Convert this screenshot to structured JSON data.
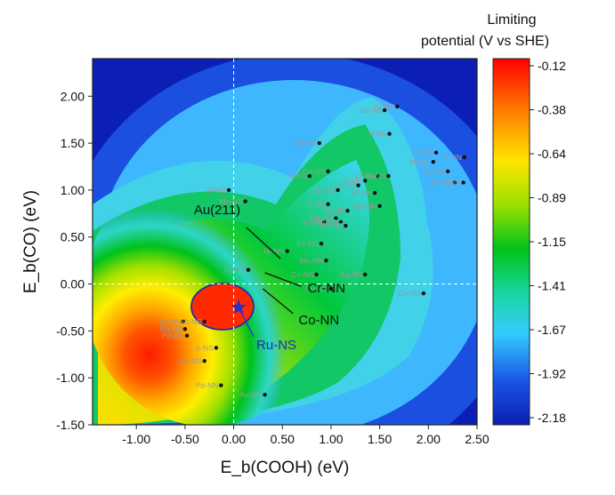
{
  "chart_data": {
    "type": "contour-scatter",
    "xlabel": "E_b(COOH) (eV)",
    "ylabel": "E_b(CO) (eV)",
    "xlim": [
      -1.45,
      2.5
    ],
    "ylim": [
      -1.5,
      2.4
    ],
    "x_ticks": [
      "-1.00",
      "-0.50",
      "0.00",
      "0.50",
      "1.00",
      "1.50",
      "2.00",
      "2.50"
    ],
    "y_ticks": [
      "2.00",
      "1.50",
      "1.00",
      "0.50",
      "0.00",
      "-0.50",
      "-1.00",
      "-1.50"
    ],
    "colorbar": {
      "title_line1": "Limiting",
      "title_line2": "potential (V vs SHE)",
      "ticks": [
        "-0.12",
        "-0.38",
        "-0.64",
        "-0.89",
        "-1.15",
        "-1.41",
        "-1.67",
        "-1.92",
        "-2.18"
      ],
      "range": [
        -2.18,
        -0.12
      ]
    },
    "points": [
      {
        "label": "Ta-NN",
        "x": 1.68,
        "y": 1.89
      },
      {
        "label": "Nb-NS",
        "x": 1.55,
        "y": 1.85
      },
      {
        "label": "Ti-NN",
        "x": 1.6,
        "y": 1.6
      },
      {
        "label": "Zr-NN",
        "x": 2.08,
        "y": 1.4
      },
      {
        "label": "Y-NN",
        "x": 2.37,
        "y": 1.35
      },
      {
        "label": "Hf-NS",
        "x": 2.05,
        "y": 1.3
      },
      {
        "label": "Sc-NN",
        "x": 2.2,
        "y": 1.2
      },
      {
        "label": "Sc-NS",
        "x": 2.27,
        "y": 1.08
      },
      {
        "label": "Y-NS",
        "x": 2.36,
        "y": 1.08
      },
      {
        "label": "Mn-NN",
        "x": 0.88,
        "y": 1.5
      },
      {
        "label": "Co-NS",
        "x": 0.97,
        "y": 1.2
      },
      {
        "label": "Ir-NS",
        "x": 0.78,
        "y": 1.15
      },
      {
        "label": "Ti-NS",
        "x": 1.35,
        "y": 1.1
      },
      {
        "label": "Zr-NS",
        "x": 1.48,
        "y": 1.15
      },
      {
        "label": "Ta-NS",
        "x": 1.59,
        "y": 1.15
      },
      {
        "label": "Hf-NN",
        "x": 1.28,
        "y": 1.05
      },
      {
        "label": "Nb-NS",
        "x": 1.07,
        "y": 1.0
      },
      {
        "label": "W-NN",
        "x": 1.45,
        "y": 0.97
      },
      {
        "label": "Ru-NN",
        "x": 1.5,
        "y": 0.83
      },
      {
        "label": "V-NN",
        "x": 0.97,
        "y": 0.85
      },
      {
        "label": "Fe-NN",
        "x": 1.17,
        "y": 0.78
      },
      {
        "label": "Ir-NN",
        "x": 0.93,
        "y": 0.66
      },
      {
        "label": "Rh-NN",
        "x": 1.05,
        "y": 0.7
      },
      {
        "label": "Mn-NS",
        "x": 1.1,
        "y": 0.66
      },
      {
        "label": "Re-NS",
        "x": 1.15,
        "y": 0.62
      },
      {
        "label": "W-NS",
        "x": -0.05,
        "y": 1.0
      },
      {
        "label": "Mo-NS",
        "x": 0.12,
        "y": 0.88
      },
      {
        "label": "Ni-NN",
        "x": 0.55,
        "y": 0.35
      },
      {
        "label": "Fe-NS",
        "x": 0.9,
        "y": 0.43
      },
      {
        "label": "Mo-NN",
        "x": 0.95,
        "y": 0.25
      },
      {
        "label": "Cr-NS",
        "x": 0.15,
        "y": 0.15
      },
      {
        "label": "Co-NS",
        "x": 0.85,
        "y": 0.1
      },
      {
        "label": "Ag-NS",
        "x": 1.35,
        "y": 0.1
      },
      {
        "label": "Cu-NN",
        "x": 1.0,
        "y": -0.05
      },
      {
        "label": "Cu-NS",
        "x": 1.95,
        "y": -0.1
      },
      {
        "label": "Pt-NN",
        "x": -0.52,
        "y": -0.4
      },
      {
        "label": "Pt-NS",
        "x": -0.3,
        "y": -0.4
      },
      {
        "label": "Rh-NS",
        "x": -0.5,
        "y": -0.48
      },
      {
        "label": "Pd-NS",
        "x": -0.48,
        "y": -0.55
      },
      {
        "label": "Ir-NS",
        "x": -0.18,
        "y": -0.68
      },
      {
        "label": "Os-NS",
        "x": -0.3,
        "y": -0.82
      },
      {
        "label": "Pd-NN",
        "x": -0.13,
        "y": -1.08
      },
      {
        "label": "Au-NN",
        "x": 0.32,
        "y": -1.18
      },
      {
        "label": "Ru-NS",
        "x": 0.05,
        "y": -0.25
      }
    ],
    "callouts": [
      {
        "label": "Au(211)",
        "x": 0.48,
        "y": 0.27
      },
      {
        "label": "Cr-NN",
        "x": 0.32,
        "y": 0.12
      },
      {
        "label": "Co-NN",
        "x": 0.3,
        "y": -0.05
      },
      {
        "label": "Ru-NS",
        "x": 0.05,
        "y": -0.25
      }
    ]
  }
}
